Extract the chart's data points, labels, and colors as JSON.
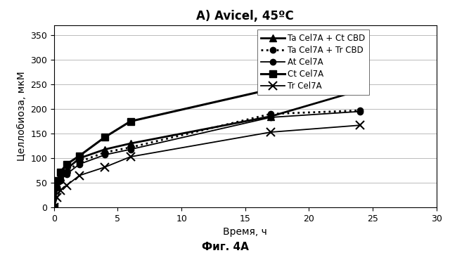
{
  "title": "A) Avicel, 45ºC",
  "xlabel": "Время, ч",
  "ylabel": "Целлобиоза, мкМ",
  "xlim": [
    0,
    30
  ],
  "ylim": [
    0,
    370
  ],
  "yticks": [
    0,
    50,
    100,
    150,
    200,
    250,
    300,
    350
  ],
  "xticks": [
    0,
    5,
    10,
    15,
    20,
    25,
    30
  ],
  "series": [
    {
      "label": "Ta Cel7A + Ct CBD",
      "x": [
        0,
        0.25,
        0.5,
        1,
        2,
        4,
        6,
        17,
        24
      ],
      "y": [
        0,
        45,
        62,
        78,
        100,
        118,
        130,
        185,
        238
      ],
      "color": "#000000",
      "linestyle": "-",
      "marker": "^",
      "linewidth": 2.0,
      "markersize": 7
    },
    {
      "label": "Ta Cel7A + Tr CBD",
      "x": [
        0,
        0.25,
        0.5,
        1,
        2,
        4,
        6,
        17,
        24
      ],
      "y": [
        0,
        42,
        58,
        72,
        93,
        112,
        122,
        190,
        197
      ],
      "color": "#000000",
      "linestyle": ":",
      "marker": "o",
      "linewidth": 2.0,
      "markersize": 6
    },
    {
      "label": "At Cel7A",
      "x": [
        0,
        0.25,
        0.5,
        1,
        2,
        4,
        6,
        17,
        24
      ],
      "y": [
        0,
        40,
        55,
        68,
        88,
        107,
        118,
        183,
        195
      ],
      "color": "#000000",
      "linestyle": "-",
      "marker": "o",
      "linewidth": 1.3,
      "markersize": 6
    },
    {
      "label": "Ct Cel7A",
      "x": [
        0,
        0.25,
        0.5,
        1,
        2,
        4,
        6,
        17,
        24
      ],
      "y": [
        0,
        55,
        72,
        88,
        105,
        143,
        175,
        240,
        312
      ],
      "color": "#000000",
      "linestyle": "-",
      "marker": "s",
      "linewidth": 2.2,
      "markersize": 7
    },
    {
      "label": "Tr Cel7A",
      "x": [
        0,
        0.25,
        0.5,
        1,
        2,
        4,
        6,
        17,
        24
      ],
      "y": [
        0,
        20,
        35,
        45,
        65,
        82,
        103,
        153,
        167
      ],
      "color": "#000000",
      "linestyle": "-",
      "marker": "x",
      "linewidth": 1.3,
      "markersize": 8
    }
  ],
  "caption": "Фиг. 4A",
  "background_color": "#ffffff",
  "grid_color": "#bbbbbb",
  "title_fontsize": 12,
  "label_fontsize": 10,
  "tick_fontsize": 9,
  "legend_fontsize": 8.5,
  "caption_fontsize": 11
}
